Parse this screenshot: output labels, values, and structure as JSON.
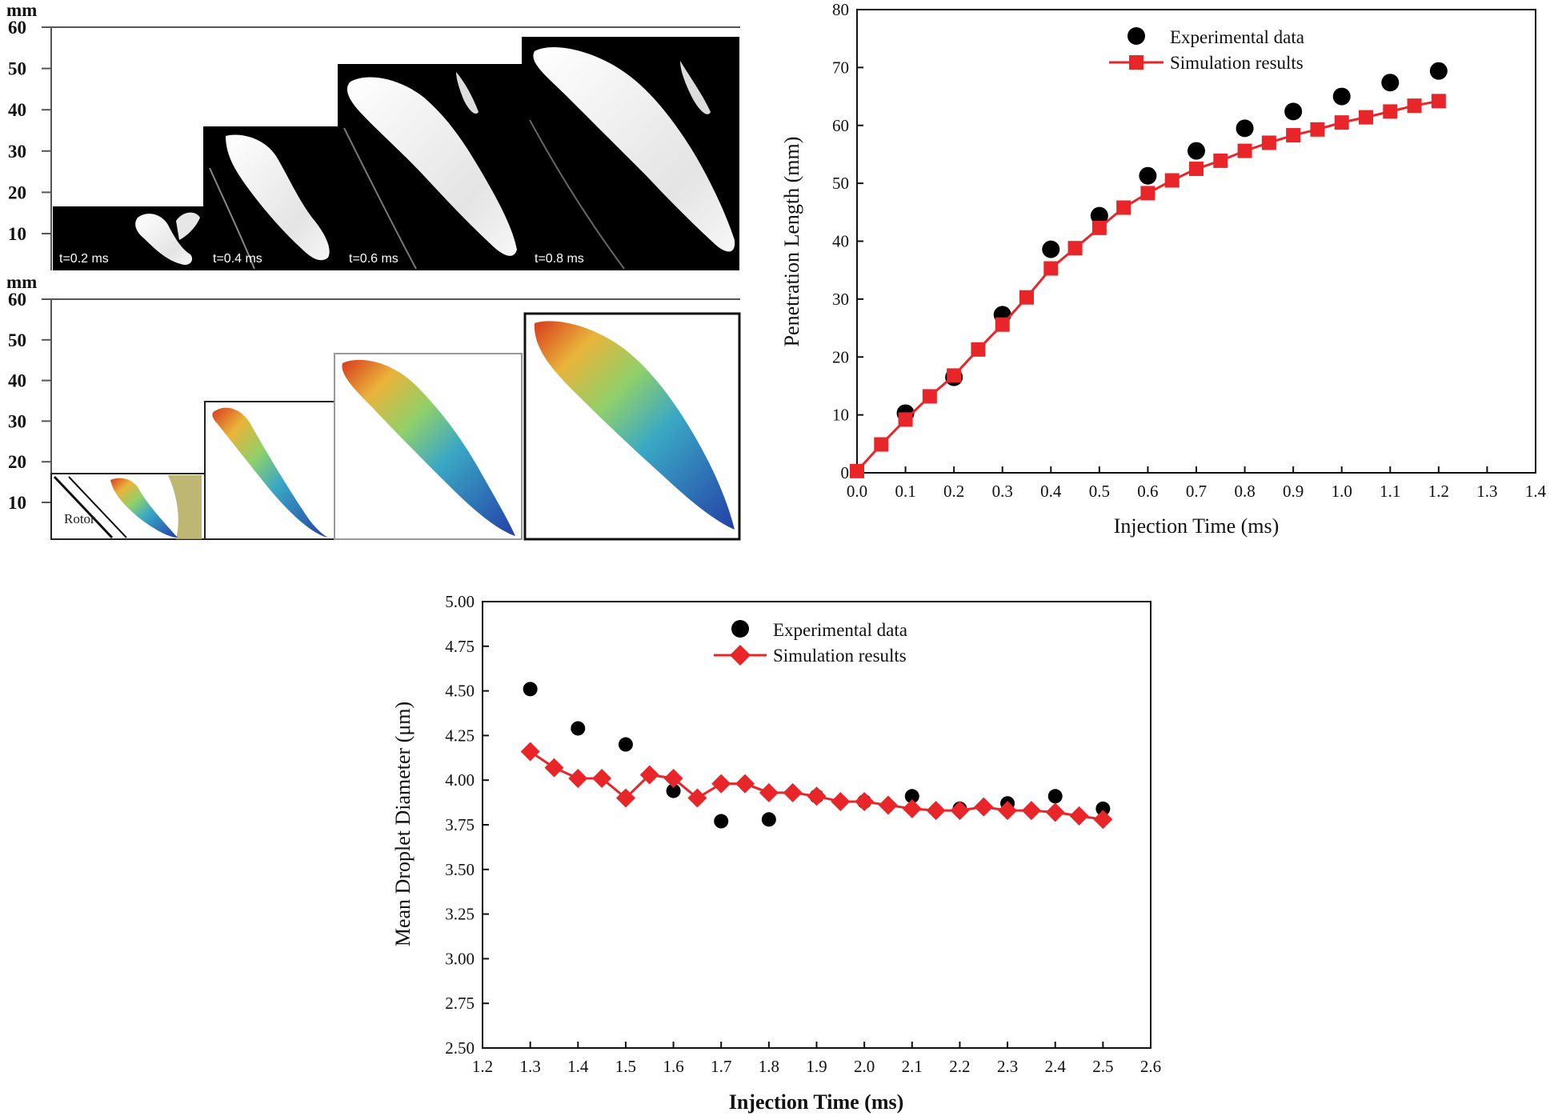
{
  "spray_images": {
    "unit": "mm",
    "scale_ticks": [
      "60",
      "50",
      "40",
      "30",
      "20",
      "10"
    ],
    "experimental_time_labels": [
      "t=0.2 ms",
      "t=0.4 ms",
      "t=0.6 ms",
      "t=0.8 ms"
    ],
    "rotor_label": "Rotor"
  },
  "chart_data": [
    {
      "type": "scatter",
      "xlabel": "Injection Time (ms)",
      "ylabel": "Penetration Length (mm)",
      "xlim": [
        0.0,
        1.4
      ],
      "ylim": [
        0,
        80
      ],
      "x_ticks": [
        "0.0",
        "0.1",
        "0.2",
        "0.3",
        "0.4",
        "0.5",
        "0.6",
        "0.7",
        "0.8",
        "0.9",
        "1.0",
        "1.1",
        "1.2",
        "1.3",
        "1.4"
      ],
      "y_ticks": [
        "0",
        "10",
        "20",
        "30",
        "40",
        "50",
        "60",
        "70",
        "80"
      ],
      "legend_position": "top-center",
      "series": [
        {
          "name": "Experimental data",
          "marker": "circle",
          "color": "#000000",
          "line": false,
          "x": [
            0.1,
            0.2,
            0.3,
            0.4,
            0.5,
            0.6,
            0.7,
            0.8,
            0.9,
            1.0,
            1.1,
            1.2
          ],
          "y": [
            10.3,
            16.5,
            27.3,
            38.6,
            44.4,
            51.3,
            55.6,
            59.5,
            62.4,
            65.0,
            67.4,
            69.4
          ]
        },
        {
          "name": "Simulation results",
          "marker": "square",
          "color": "#e8262a",
          "line": true,
          "x": [
            0.0,
            0.05,
            0.1,
            0.15,
            0.2,
            0.25,
            0.3,
            0.35,
            0.4,
            0.45,
            0.5,
            0.55,
            0.6,
            0.65,
            0.7,
            0.75,
            0.8,
            0.85,
            0.9,
            0.95,
            1.0,
            1.05,
            1.1,
            1.15,
            1.2
          ],
          "y": [
            0.3,
            4.9,
            9.2,
            13.2,
            16.8,
            21.3,
            25.6,
            30.3,
            35.3,
            38.8,
            42.3,
            45.8,
            48.3,
            50.5,
            52.5,
            53.9,
            55.6,
            57.0,
            58.3,
            59.3,
            60.5,
            61.4,
            62.4,
            63.4,
            64.2
          ]
        }
      ]
    },
    {
      "type": "scatter",
      "xlabel": "Injection Time (ms)",
      "ylabel": "Mean Droplet Diameter (μm)",
      "xlim": [
        1.2,
        2.6
      ],
      "ylim": [
        2.5,
        5.0
      ],
      "x_ticks": [
        "1.2",
        "1.3",
        "1.4",
        "1.5",
        "1.6",
        "1.7",
        "1.8",
        "1.9",
        "2.0",
        "2.1",
        "2.2",
        "2.3",
        "2.4",
        "2.5",
        "2.6"
      ],
      "y_ticks": [
        "2.50",
        "2.75",
        "3.00",
        "3.25",
        "3.50",
        "3.75",
        "4.00",
        "4.25",
        "4.50",
        "4.75",
        "5.00"
      ],
      "legend_position": "top-center",
      "series": [
        {
          "name": "Experimental data",
          "marker": "circle",
          "color": "#000000",
          "line": false,
          "x": [
            1.3,
            1.4,
            1.5,
            1.6,
            1.7,
            1.8,
            1.9,
            2.0,
            2.1,
            2.2,
            2.3,
            2.4,
            2.5
          ],
          "y": [
            4.51,
            4.29,
            4.2,
            3.94,
            3.77,
            3.78,
            3.91,
            3.88,
            3.91,
            3.84,
            3.87,
            3.91,
            3.84
          ]
        },
        {
          "name": "Simulation results",
          "marker": "diamond",
          "color": "#e8262a",
          "line": true,
          "x": [
            1.3,
            1.35,
            1.4,
            1.45,
            1.5,
            1.55,
            1.6,
            1.65,
            1.7,
            1.75,
            1.8,
            1.85,
            1.9,
            1.95,
            2.0,
            2.05,
            2.1,
            2.15,
            2.2,
            2.25,
            2.3,
            2.35,
            2.4,
            2.45,
            2.5
          ],
          "y": [
            4.16,
            4.07,
            4.01,
            4.01,
            3.9,
            4.03,
            4.01,
            3.9,
            3.98,
            3.98,
            3.93,
            3.93,
            3.91,
            3.88,
            3.88,
            3.86,
            3.84,
            3.83,
            3.83,
            3.85,
            3.83,
            3.83,
            3.82,
            3.8,
            3.78
          ]
        }
      ]
    }
  ]
}
